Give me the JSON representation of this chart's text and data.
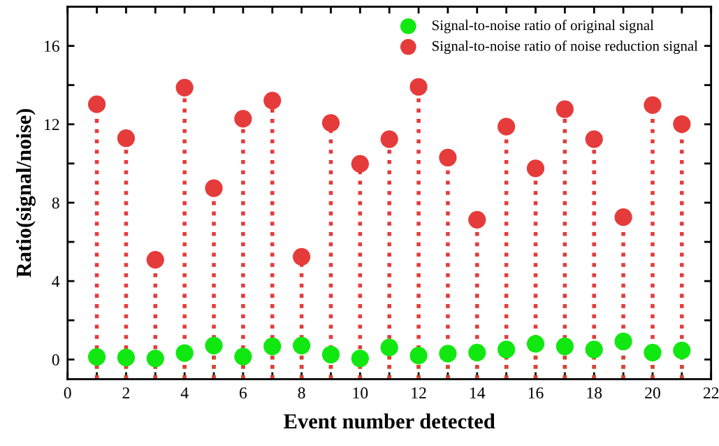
{
  "chart_data": {
    "type": "lollipop",
    "xlabel": "Event number detected",
    "ylabel": "Ratio(signal/noise)",
    "x": [
      1,
      2,
      3,
      4,
      5,
      6,
      7,
      8,
      9,
      10,
      11,
      12,
      13,
      14,
      15,
      16,
      17,
      18,
      19,
      20,
      21
    ],
    "series": [
      {
        "name": "Signal-to-noise ratio of original signal",
        "color": "#11e811",
        "values": [
          0.13,
          0.1,
          0.05,
          0.33,
          0.71,
          0.15,
          0.67,
          0.71,
          0.25,
          0.05,
          0.61,
          0.2,
          0.3,
          0.35,
          0.51,
          0.8,
          0.67,
          0.51,
          0.92,
          0.35,
          0.46
        ]
      },
      {
        "name": "Signal-to-noise ratio of noise reduction signal",
        "color": "#e63b3b",
        "values": [
          13.02,
          11.29,
          5.09,
          13.87,
          8.74,
          12.28,
          13.21,
          5.24,
          12.07,
          9.98,
          11.24,
          13.91,
          10.3,
          7.13,
          11.88,
          9.75,
          12.77,
          11.24,
          7.26,
          12.98,
          12.01
        ]
      }
    ],
    "xlim": [
      0,
      22
    ],
    "xticks": [
      0,
      {
        "value": 1,
        "label": null
      },
      2,
      {
        "value": 3,
        "label": null
      },
      4,
      {
        "value": 5,
        "label": null
      },
      6,
      {
        "value": 7,
        "label": null
      },
      8,
      {
        "value": 9,
        "label": null
      },
      10,
      {
        "value": 11,
        "label": null
      },
      12,
      {
        "value": 13,
        "label": null
      },
      14,
      {
        "value": 15,
        "label": null
      },
      16,
      {
        "value": 17,
        "label": null
      },
      18,
      {
        "value": 19,
        "label": null
      },
      20,
      {
        "value": 21,
        "label": null
      },
      22
    ],
    "ylim": [
      -1,
      18
    ],
    "yticks": [
      0,
      {
        "value": 2,
        "label": null
      },
      4,
      {
        "value": 6,
        "label": null
      },
      8,
      {
        "value": 10,
        "label": null
      },
      12,
      {
        "value": 14,
        "label": null
      },
      16
    ],
    "marker": "circle",
    "line_style": "dotted",
    "legend": "top right"
  }
}
